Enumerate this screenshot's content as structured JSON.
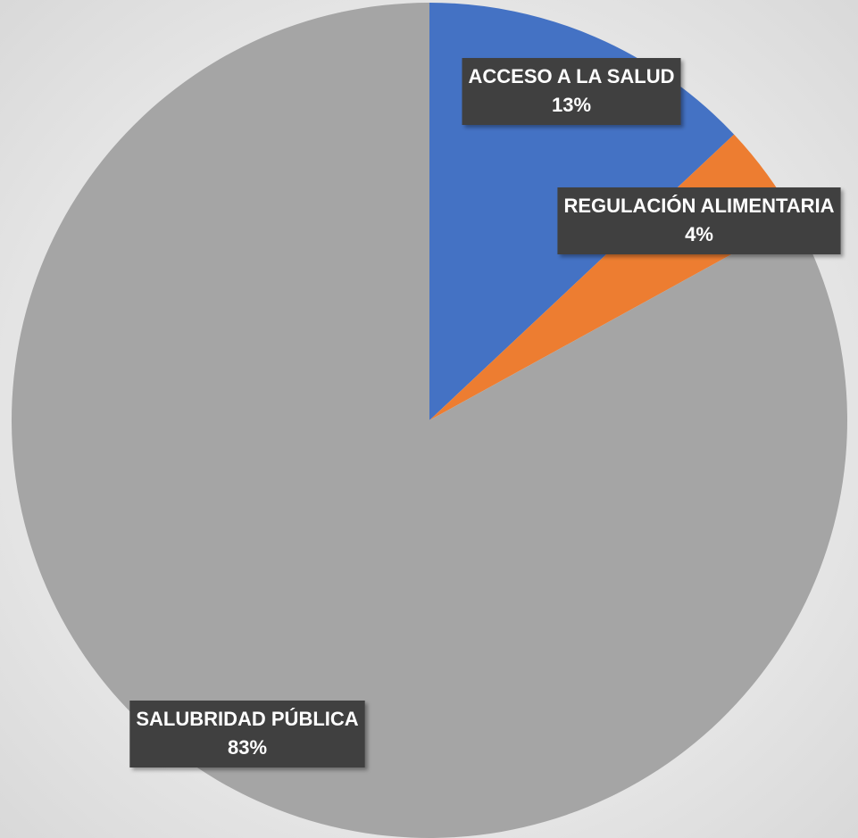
{
  "chart_data": {
    "type": "pie",
    "categories": [
      "ACCESO A LA SALUD",
      "REGULACIÓN ALIMENTARIA",
      "SALUBRIDAD PÚBLICA"
    ],
    "values": [
      13,
      4,
      83
    ],
    "value_labels": [
      "13%",
      "4%",
      "83%"
    ],
    "colors": [
      "#4472c4",
      "#ed7d31",
      "#a5a5a5"
    ]
  }
}
